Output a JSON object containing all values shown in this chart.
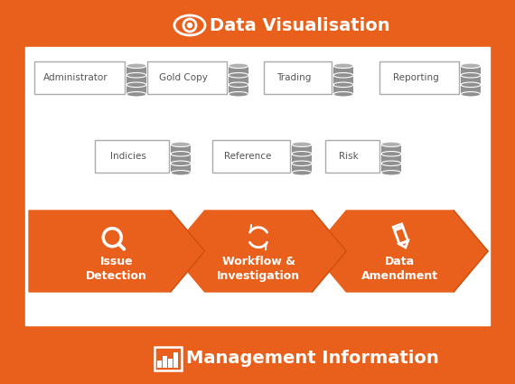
{
  "bg_color": "#E8601C",
  "white": "#FFFFFF",
  "orange": "#E8601C",
  "db_color": "#909090",
  "db_edge": "#FFFFFF",
  "box_edge": "#AAAAAA",
  "box_text": "#555555",
  "title_top": "Data Visualisation",
  "title_bottom": "Management Information",
  "db_labels_row1": [
    "Administrator",
    "Gold Copy",
    "Trading",
    "Reporting"
  ],
  "db_labels_row2": [
    "Indicies",
    "Reference",
    "Risk"
  ],
  "arrow_labels": [
    "Issue\nDetection",
    "Workflow &\nInvestigation",
    "Data\nAmendment"
  ],
  "fig_w": 5.7,
  "fig_h": 4.25,
  "dpi": 100
}
